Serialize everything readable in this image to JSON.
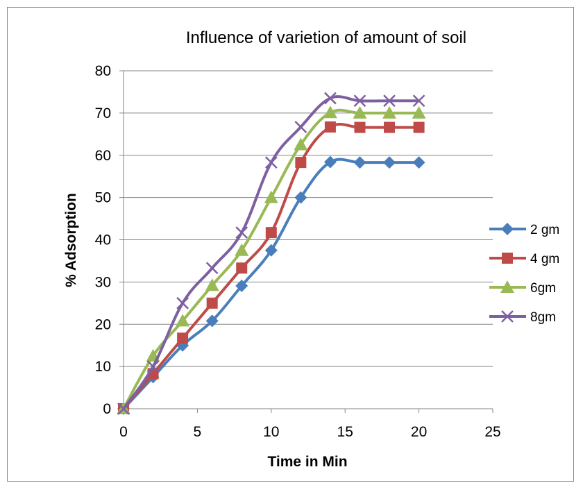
{
  "chart_data": {
    "type": "line",
    "title": "Influence of varietion of amount of soil",
    "xlabel": "Time in Min",
    "ylabel": "% Adsorption",
    "xlim": [
      0,
      25
    ],
    "ylim": [
      0,
      80
    ],
    "x_ticks": [
      "0",
      "5",
      "10",
      "15",
      "20",
      "25"
    ],
    "y_ticks": [
      "0",
      "10",
      "20",
      "30",
      "40",
      "50",
      "60",
      "70",
      "80"
    ],
    "grid": "horizontal",
    "legend_position": "right",
    "x": [
      0,
      2,
      4,
      6,
      8,
      10,
      12,
      14,
      16,
      18,
      20
    ],
    "series": [
      {
        "name": "2 gm",
        "color": "#4A7EBB",
        "marker": "diamond",
        "values": [
          0,
          7.5,
          15,
          20.8,
          29.1,
          37.5,
          50,
          58.4,
          58.3,
          58.3,
          58.3
        ]
      },
      {
        "name": "4 gm",
        "color": "#BE4B48",
        "marker": "square",
        "values": [
          0,
          8.3,
          16.7,
          25,
          33.3,
          41.7,
          58.3,
          66.7,
          66.6,
          66.6,
          66.6
        ]
      },
      {
        "name": "6gm",
        "color": "#98B954",
        "marker": "triangle",
        "values": [
          0,
          12.5,
          20.8,
          29.2,
          37.5,
          50,
          62.5,
          70.1,
          70,
          70,
          70
        ]
      },
      {
        "name": "8gm",
        "color": "#7D60A0",
        "marker": "x",
        "values": [
          0,
          10,
          25,
          33.3,
          41.7,
          58.3,
          66.7,
          73.5,
          72.9,
          72.9,
          72.9
        ]
      }
    ]
  }
}
